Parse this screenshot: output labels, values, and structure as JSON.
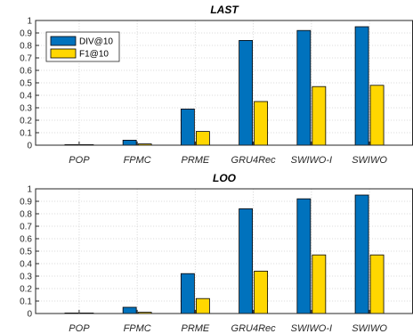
{
  "colors": {
    "DIV@10": "#0072BD",
    "F1@10": "#FFD700"
  },
  "chart_data": [
    {
      "type": "bar",
      "title": "LAST",
      "categories": [
        "POP",
        "FPMC",
        "PRME",
        "GRU4Rec",
        "SWIWO-I",
        "SWIWO"
      ],
      "series": [
        {
          "name": "DIV@10",
          "values": [
            0.0,
            0.04,
            0.29,
            0.84,
            0.92,
            0.95
          ]
        },
        {
          "name": "F1@10",
          "values": [
            0.0,
            0.01,
            0.11,
            0.35,
            0.47,
            0.48
          ]
        }
      ],
      "ylim": [
        0,
        1
      ],
      "yticks": [
        "0",
        "0.1",
        "0.2",
        "0.3",
        "0.4",
        "0.5",
        "0.6",
        "0.7",
        "0.8",
        "0.9",
        "1"
      ],
      "grid": true,
      "legend": "top-left"
    },
    {
      "type": "bar",
      "title": "LOO",
      "categories": [
        "POP",
        "FPMC",
        "PRME",
        "GRU4Rec",
        "SWIWO-I",
        "SWIWO"
      ],
      "series": [
        {
          "name": "DIV@10",
          "values": [
            0.0,
            0.05,
            0.32,
            0.84,
            0.92,
            0.95
          ]
        },
        {
          "name": "F1@10",
          "values": [
            0.0,
            0.01,
            0.12,
            0.34,
            0.47,
            0.47
          ]
        }
      ],
      "ylim": [
        0,
        1
      ],
      "yticks": [
        "0",
        "0.1",
        "0.2",
        "0.3",
        "0.4",
        "0.5",
        "0.6",
        "0.7",
        "0.8",
        "0.9",
        "1"
      ],
      "grid": true,
      "legend": "none"
    }
  ]
}
